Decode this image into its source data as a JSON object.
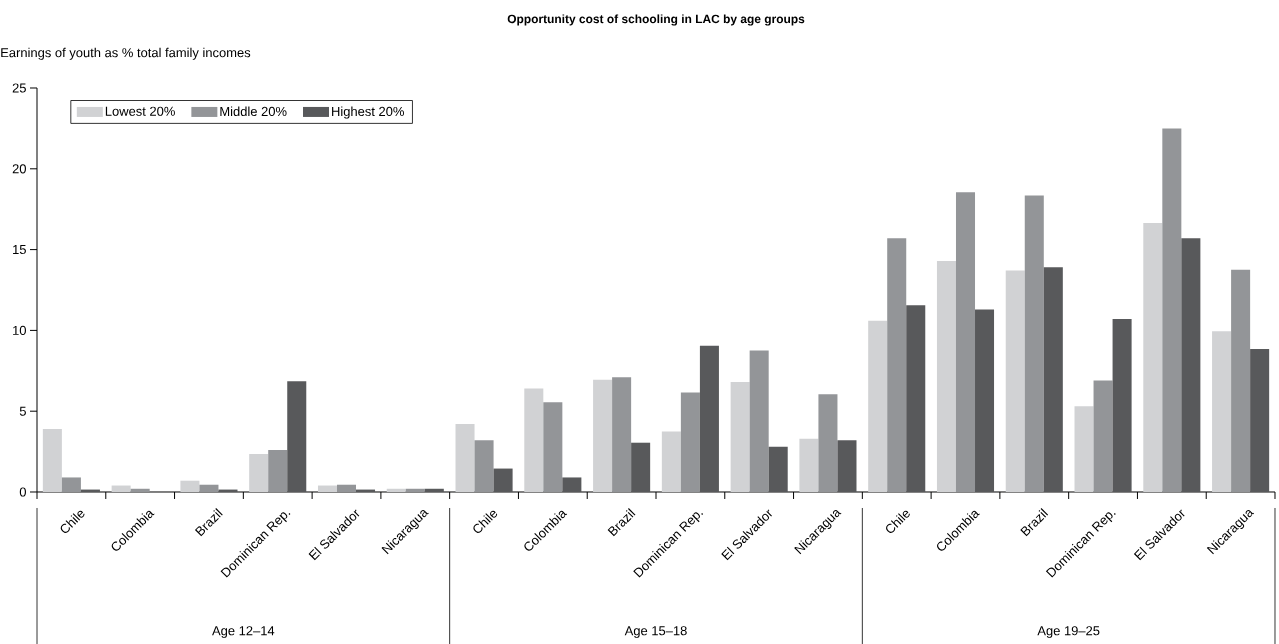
{
  "chart_data": {
    "type": "bar",
    "title": "Opportunity cost of schooling in LAC by age groups",
    "ylabel": "Earnings of youth as % total family incomes",
    "categories": [
      "Chile",
      "Colombia",
      "Brazil",
      "Dominican Rep.",
      "El Salvador",
      "Nicaragua",
      "Chile",
      "Colombia",
      "Brazil",
      "Dominican Rep.",
      "El Salvador",
      "Nicaragua",
      "Chile",
      "Colombia",
      "Brazil",
      "Dominican Rep.",
      "El Salvador",
      "Nicaragua"
    ],
    "annotations": [
      "Age 12–14",
      "Age 15–18",
      "Age 19–25"
    ],
    "series": [
      {
        "name": "Lowest 20%",
        "color": "#d1d2d4",
        "values": [
          3.9,
          0.4,
          0.7,
          2.35,
          0.4,
          0.2,
          4.2,
          6.4,
          6.95,
          3.75,
          6.8,
          3.3,
          10.6,
          14.3,
          13.7,
          5.3,
          16.65,
          9.95
        ]
      },
      {
        "name": "Middle 20%",
        "color": "#939598",
        "values": [
          0.9,
          0.2,
          0.45,
          2.6,
          0.45,
          0.2,
          3.2,
          5.55,
          7.1,
          6.15,
          8.75,
          6.05,
          15.7,
          18.55,
          18.35,
          6.9,
          22.5,
          13.75
        ]
      },
      {
        "name": "Highest 20%",
        "color": "#58595b",
        "values": [
          0.15,
          0,
          0.15,
          6.85,
          0.15,
          0.2,
          1.45,
          0.9,
          3.05,
          9.05,
          2.8,
          3.2,
          11.55,
          11.3,
          13.9,
          10.7,
          15.7,
          8.85
        ]
      }
    ],
    "ylim": [
      0,
      25
    ],
    "yticks": [
      0,
      5,
      10,
      15,
      20,
      25
    ],
    "grid": false,
    "legend": "top left"
  }
}
